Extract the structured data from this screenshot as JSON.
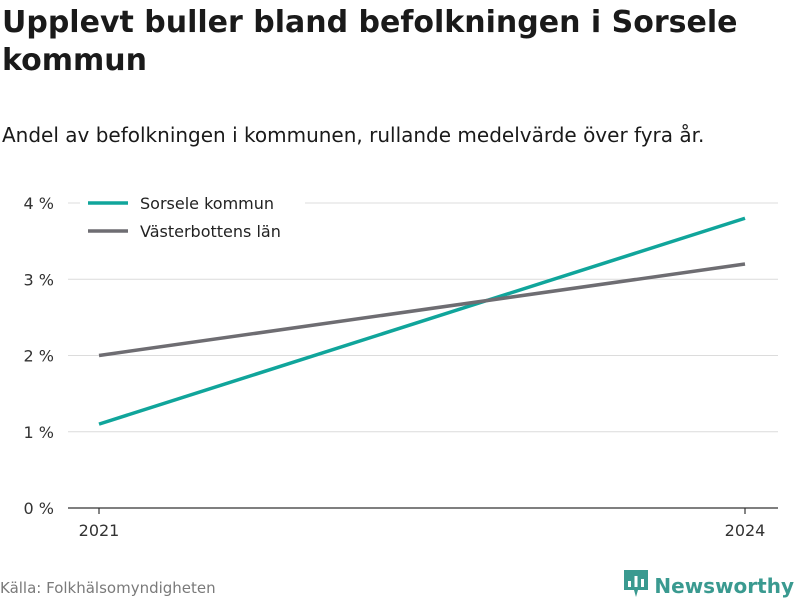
{
  "title": "Upplevt buller bland befolkningen i Sorsele kommun",
  "subtitle": "Andel av befolkningen i kommunen, rullande medelvärde över fyra år.",
  "source": "Källa: Folkhälsomyndigheten",
  "brand": {
    "name": "Newsworthy",
    "logo_icon": "newsworthy-logo-icon",
    "color": "#3a9a90"
  },
  "chart_data": {
    "type": "line",
    "x": [
      2021,
      2024
    ],
    "x_tick_labels": [
      "2021",
      "2024"
    ],
    "y_ticks": [
      0,
      1,
      2,
      3,
      4
    ],
    "y_tick_labels": [
      "0 %",
      "1 %",
      "2 %",
      "3 %",
      "4 %"
    ],
    "ylim": [
      0,
      4
    ],
    "grid": true,
    "legend_position": "top-left",
    "series": [
      {
        "name": "Sorsele kommun",
        "color": "#10a59b",
        "values": [
          1.1,
          3.8
        ]
      },
      {
        "name": "Västerbottens län",
        "color": "#6e6d72",
        "values": [
          2.0,
          3.2
        ]
      }
    ]
  }
}
